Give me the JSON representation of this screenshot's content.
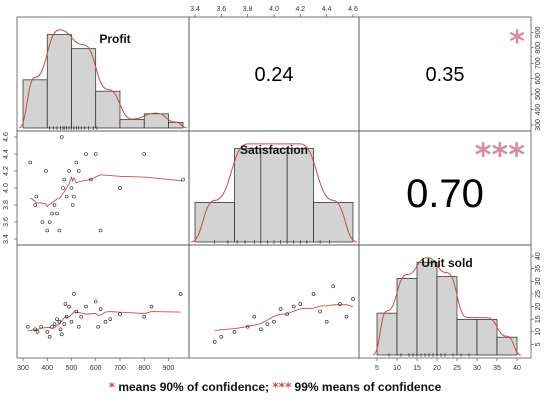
{
  "chart_data": {
    "type": "scatter-matrix",
    "variables": [
      {
        "name": "Profit",
        "histogram": {
          "bin_edges": [
            300,
            400,
            500,
            600,
            700,
            800,
            900,
            960
          ],
          "heights": [
            0.17,
            0.33,
            0.28,
            0.13,
            0.03,
            0.05,
            0.02
          ]
        },
        "rug": [
          410,
          425,
          440,
          455,
          465,
          470,
          480,
          490,
          500,
          510,
          520,
          530,
          540,
          555,
          570,
          590,
          605
        ],
        "ticks": [
          "300",
          "400",
          "500",
          "600",
          "700",
          "800",
          "900"
        ],
        "range": [
          300,
          960
        ]
      },
      {
        "name": "Satisfaction",
        "histogram": {
          "bin_edges": [
            3.4,
            3.7,
            3.9,
            4.1,
            4.3,
            4.6
          ],
          "heights": [
            0.14,
            0.33,
            0.33,
            0.33,
            0.14
          ]
        },
        "rug": [
          3.55,
          3.65,
          3.72,
          3.78,
          3.85,
          3.9,
          3.95,
          4.0,
          4.05,
          4.1,
          4.15,
          4.2,
          4.25,
          4.35,
          4.42
        ],
        "ticks": [
          "3.4",
          "3.6",
          "3.8",
          "4.0",
          "4.2",
          "4.4",
          "4.6"
        ],
        "range": [
          3.4,
          4.6
        ]
      },
      {
        "name": "Unit sold",
        "histogram": {
          "bin_edges": [
            5,
            10,
            15,
            20,
            25,
            30,
            35,
            40
          ],
          "heights": [
            0.047,
            0.086,
            0.104,
            0.088,
            0.04,
            0.04,
            0.02
          ]
        },
        "rug": [
          8,
          11,
          13,
          14,
          15,
          16,
          17,
          18,
          19,
          20,
          21,
          22,
          24,
          26,
          28
        ],
        "ticks": [
          "5",
          "10",
          "15",
          "20",
          "25",
          "30",
          "35",
          "40"
        ],
        "range": [
          2,
          42
        ]
      }
    ],
    "correlations": [
      {
        "pair": [
          "Profit",
          "Satisfaction"
        ],
        "value": "0.24",
        "stars": ""
      },
      {
        "pair": [
          "Profit",
          "Unit sold"
        ],
        "value": "0.35",
        "stars": "*"
      },
      {
        "pair": [
          "Satisfaction",
          "Unit sold"
        ],
        "value": "0.70",
        "stars": "***"
      }
    ],
    "scatter": {
      "profit_vs_satisfaction": [
        [
          330,
          4.3
        ],
        [
          350,
          3.8
        ],
        [
          355,
          3.9
        ],
        [
          380,
          3.6
        ],
        [
          395,
          4.2
        ],
        [
          400,
          3.5
        ],
        [
          410,
          3.6
        ],
        [
          420,
          3.7
        ],
        [
          430,
          3.8
        ],
        [
          440,
          3.7
        ],
        [
          450,
          3.5
        ],
        [
          460,
          4.6
        ],
        [
          465,
          4.0
        ],
        [
          470,
          4.1
        ],
        [
          480,
          3.9
        ],
        [
          490,
          4.2
        ],
        [
          500,
          4.0
        ],
        [
          505,
          3.8
        ],
        [
          510,
          3.9
        ],
        [
          520,
          4.3
        ],
        [
          530,
          4.2
        ],
        [
          560,
          4.4
        ],
        [
          580,
          4.1
        ],
        [
          600,
          4.4
        ],
        [
          620,
          3.5
        ],
        [
          700,
          4.0
        ],
        [
          800,
          4.4
        ],
        [
          960,
          4.1
        ]
      ],
      "profit_vs_units": [
        [
          320,
          12
        ],
        [
          350,
          11
        ],
        [
          360,
          10
        ],
        [
          375,
          12
        ],
        [
          400,
          10
        ],
        [
          410,
          8
        ],
        [
          420,
          12
        ],
        [
          430,
          13
        ],
        [
          440,
          15
        ],
        [
          450,
          14
        ],
        [
          455,
          11
        ],
        [
          460,
          9
        ],
        [
          470,
          13
        ],
        [
          475,
          21
        ],
        [
          480,
          16
        ],
        [
          490,
          20
        ],
        [
          500,
          14
        ],
        [
          510,
          25
        ],
        [
          520,
          18
        ],
        [
          530,
          12
        ],
        [
          540,
          16
        ],
        [
          560,
          20
        ],
        [
          600,
          22
        ],
        [
          610,
          12
        ],
        [
          620,
          19
        ],
        [
          640,
          14
        ],
        [
          660,
          15
        ],
        [
          700,
          17
        ],
        [
          800,
          16
        ],
        [
          830,
          20
        ],
        [
          950,
          25
        ]
      ],
      "satisfaction_vs_units": [
        [
          3.55,
          6
        ],
        [
          3.6,
          8
        ],
        [
          3.7,
          10
        ],
        [
          3.8,
          12
        ],
        [
          3.85,
          16
        ],
        [
          3.9,
          11
        ],
        [
          3.95,
          13
        ],
        [
          4.0,
          14
        ],
        [
          4.05,
          19
        ],
        [
          4.1,
          17
        ],
        [
          4.15,
          20
        ],
        [
          4.2,
          21
        ],
        [
          4.3,
          25
        ],
        [
          4.35,
          18
        ],
        [
          4.4,
          14
        ],
        [
          4.45,
          28
        ],
        [
          4.5,
          21
        ],
        [
          4.55,
          16
        ],
        [
          4.6,
          23
        ]
      ]
    },
    "footer": {
      "star1": "*",
      "text1": " means 90% of confidence;  ",
      "star3": "***",
      "text3": " 99% means of confidence"
    }
  }
}
